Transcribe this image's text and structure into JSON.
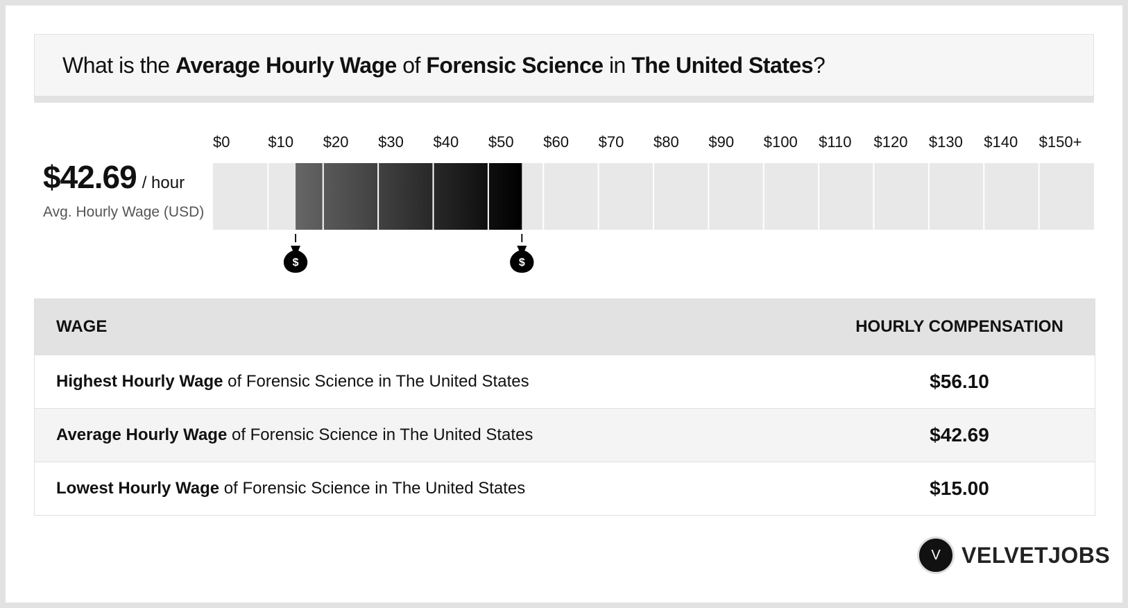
{
  "header": {
    "title": [
      {
        "text": "What is the ",
        "bold": false
      },
      {
        "text": "Average Hourly Wage",
        "bold": true
      },
      {
        "text": " of ",
        "bold": false
      },
      {
        "text": "Forensic Science",
        "bold": true
      },
      {
        "text": " in ",
        "bold": false
      },
      {
        "text": "The United States",
        "bold": true
      },
      {
        "text": "?",
        "bold": false
      }
    ]
  },
  "summary": {
    "value": {
      "value": 42.69,
      "label": "$42.69"
    },
    "unit": "/ hour",
    "caption": "Avg. Hourly Wage (USD)"
  },
  "scale": {
    "ticks": [
      {
        "value": 0,
        "label": "$0"
      },
      {
        "value": 10,
        "label": "$10"
      },
      {
        "value": 20,
        "label": "$20"
      },
      {
        "value": 30,
        "label": "$30"
      },
      {
        "value": 40,
        "label": "$40"
      },
      {
        "value": 50,
        "label": "$50"
      },
      {
        "value": 60,
        "label": "$60"
      },
      {
        "value": 70,
        "label": "$70"
      },
      {
        "value": 80,
        "label": "$80"
      },
      {
        "value": 90,
        "label": "$90"
      },
      {
        "value": 100,
        "label": "$100"
      },
      {
        "value": 110,
        "label": "$110"
      },
      {
        "value": 120,
        "label": "$120"
      },
      {
        "value": 130,
        "label": "$130"
      },
      {
        "value": 140,
        "label": "$140"
      },
      {
        "value": 150,
        "label": "$150+"
      }
    ]
  },
  "table": {
    "headers": [
      "WAGE",
      "HOURLY COMPENSATION"
    ],
    "rows": [
      {
        "bold": "Highest Hourly Wage",
        "rest": " of Forensic Science in The United States",
        "value": 56.1,
        "label": "$56.10"
      },
      {
        "bold": "Average Hourly Wage",
        "rest": " of Forensic Science in The United States",
        "value": 42.69,
        "label": "$42.69"
      },
      {
        "bold": "Lowest Hourly Wage",
        "rest": " of Forensic Science in The United States",
        "value": 15,
        "label": "$15.00"
      }
    ]
  },
  "logo": {
    "letter": "V",
    "text": "VELVETJOBS"
  }
}
